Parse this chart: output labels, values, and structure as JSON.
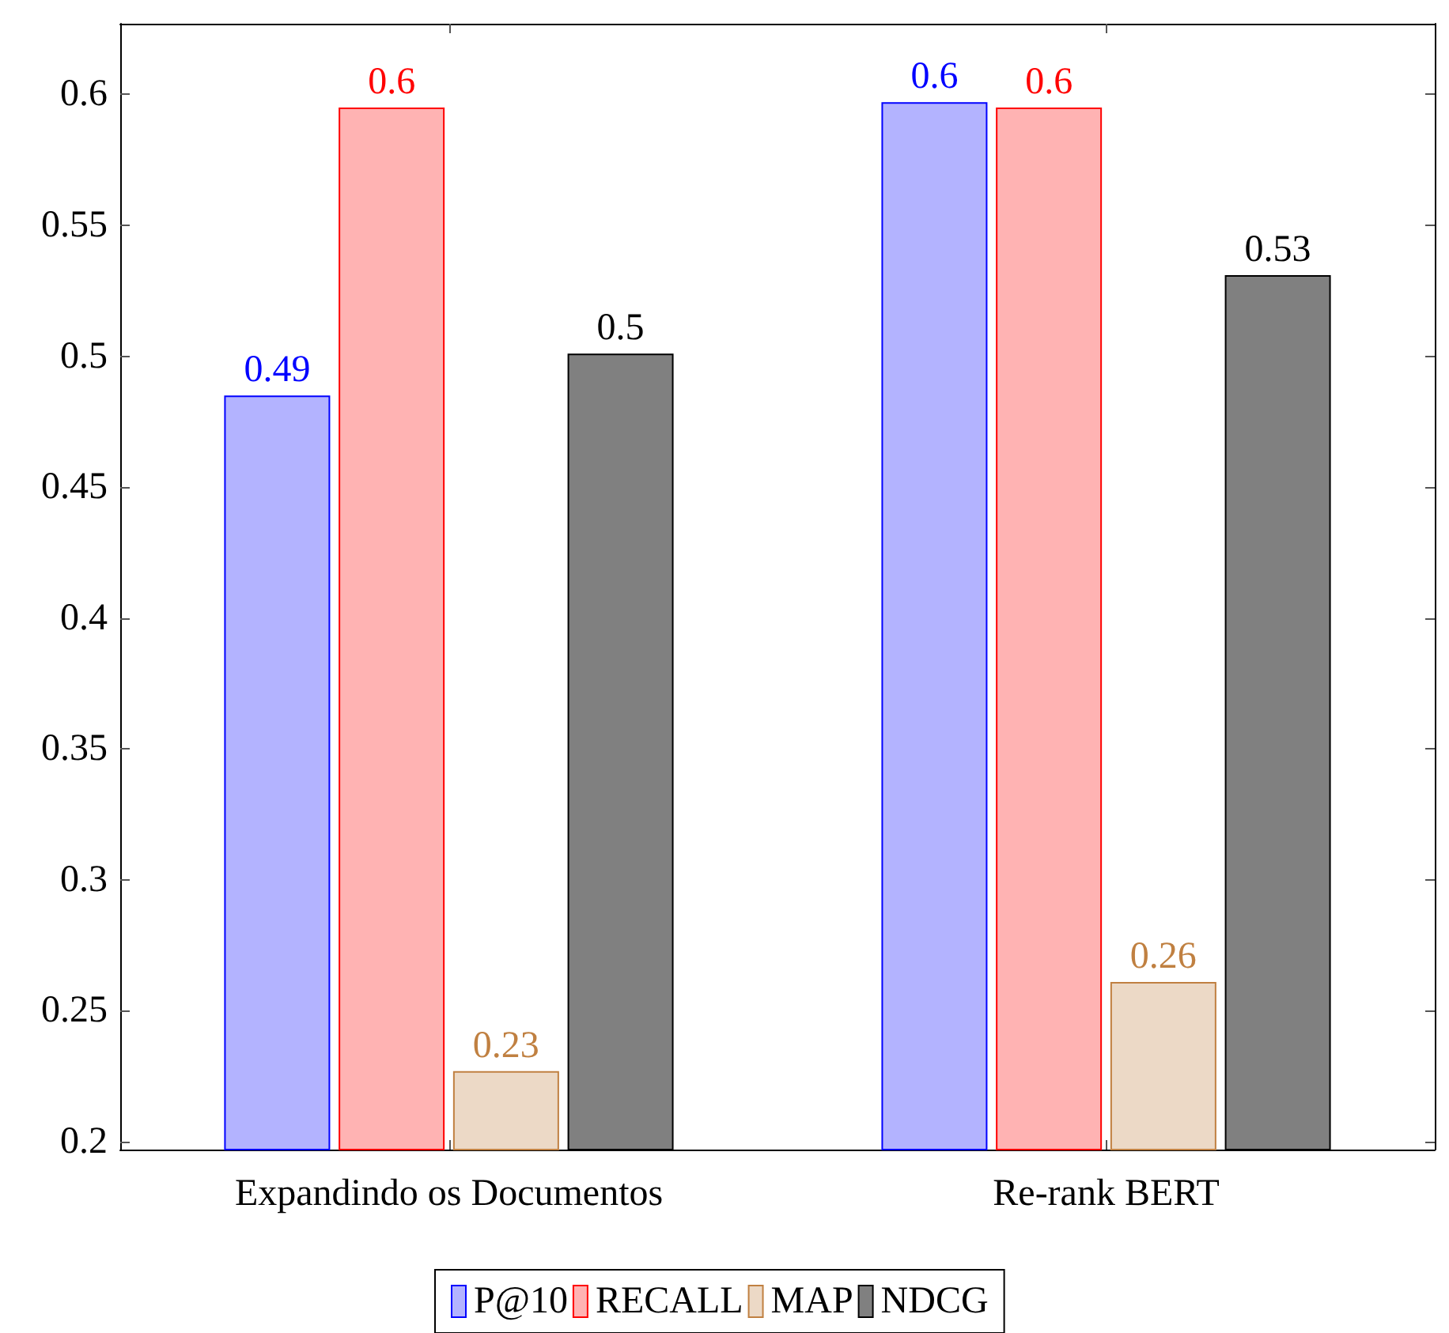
{
  "chart_data": {
    "type": "bar",
    "categories": [
      "Expandindo os Documentos",
      "Re-rank BERT"
    ],
    "series": [
      {
        "name": "P@10",
        "color": "#b3b3ff",
        "values": [
          0.485,
          0.597
        ],
        "value_labels": [
          "0.49",
          "0.6"
        ]
      },
      {
        "name": "RECALL",
        "color": "#ffb3b3",
        "values": [
          0.595,
          0.595
        ],
        "value_labels": [
          "0.6",
          "0.6"
        ]
      },
      {
        "name": "MAP",
        "color": "#ecd9c6",
        "values": [
          0.227,
          0.261
        ],
        "value_labels": [
          "0.23",
          "0.26"
        ]
      },
      {
        "name": "NDCG",
        "color": "#808080",
        "values": [
          0.501,
          0.531
        ],
        "value_labels": [
          "0.5",
          "0.53"
        ]
      }
    ],
    "ylim": [
      0.197,
      0.627
    ],
    "yticks": [
      0.2,
      0.25,
      0.3,
      0.35,
      0.4,
      0.45,
      0.5,
      0.55,
      0.6
    ],
    "grid": false,
    "legend": "bottom"
  }
}
